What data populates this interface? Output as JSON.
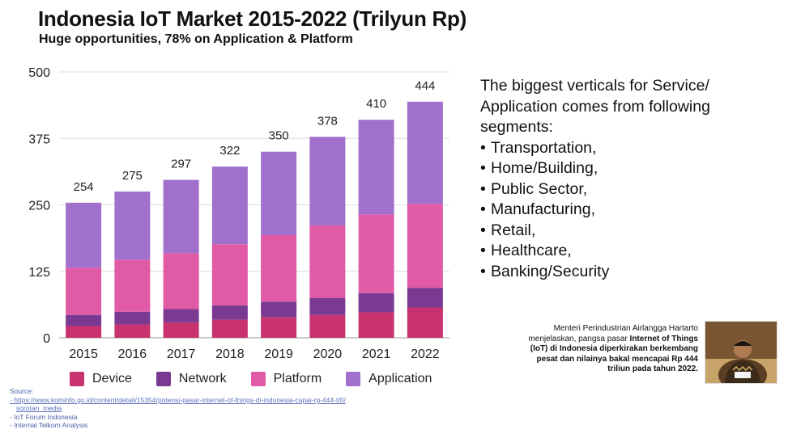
{
  "header": {
    "title": "Indonesia IoT Market 2015-2022 (Trilyun Rp)",
    "subtitle": "Huge opportunities, 78% on Application & Platform"
  },
  "chart_data": {
    "type": "bar",
    "stacked": true,
    "categories": [
      "2015",
      "2016",
      "2017",
      "2018",
      "2019",
      "2020",
      "2021",
      "2022"
    ],
    "series": [
      {
        "name": "Device",
        "color": "#c8336f",
        "values": [
          22,
          25,
          29,
          34,
          39,
          43,
          48,
          57
        ]
      },
      {
        "name": "Network",
        "color": "#7a3a92",
        "values": [
          21,
          24,
          25,
          27,
          29,
          32,
          36,
          37
        ]
      },
      {
        "name": "Platform",
        "color": "#e05aa6",
        "values": [
          89,
          98,
          105,
          115,
          125,
          136,
          148,
          158
        ]
      },
      {
        "name": "Application",
        "color": "#a070cc",
        "values": [
          122,
          128,
          138,
          146,
          157,
          167,
          178,
          192
        ]
      }
    ],
    "totals": [
      "254",
      "275",
      "297",
      "322",
      "350",
      "378",
      "410",
      "444"
    ],
    "ylim": [
      0,
      500
    ],
    "yticks": [
      "0",
      "125",
      "250",
      "375",
      "500"
    ],
    "grid": true,
    "legend": "bottom",
    "xlabel": "",
    "ylabel": ""
  },
  "sources": {
    "heading": "Source:",
    "items": [
      "- https://www.kominfo.go.id/content/detail/15354/potensi-pasar-internet-of-things-di-indonesia-capai-rp-444-t/0/",
      "sorotan_media",
      "- IoT Forum Indonesia",
      "- Internal Telkom Analysis"
    ]
  },
  "verticals": {
    "intro": [
      "The biggest verticals for Service/",
      "Application comes from following",
      "segments:"
    ],
    "items": [
      "Transportation,",
      "Home/Building,",
      "Public Sector,",
      "Manufacturing,",
      "Retail,",
      "Healthcare,",
      "Banking/Security"
    ]
  },
  "caption": {
    "line1": "Menteri Perindustrian Airlangga Hartarto",
    "line2a": "menjelaskan, pangsa pasar ",
    "line2b": "Internet of Things",
    "line3": "(IoT) di Indonesia diperkirakan berkembang",
    "line4": "pesat dan nilainya bakal mencapai Rp 444",
    "line5": "triliun pada tahun 2022."
  }
}
